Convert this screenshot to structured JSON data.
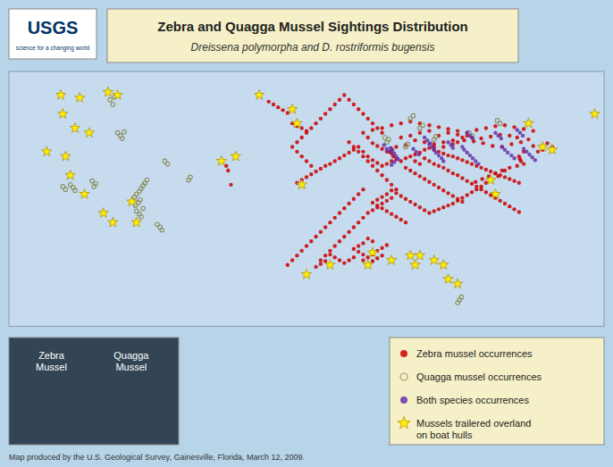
{
  "chart_data": {
    "type": "scatter",
    "title": "Zebra and Quagga Mussel Sightings Distribution",
    "subtitle": "Dreissena polymorpha and D. rostriformis bugensis",
    "annotations": [
      "USGS",
      "science for a changing world",
      "Zebra\nMussel",
      "Quagga\nMussel",
      "Map produced by the U.S. Geological Survey, Gainesville, Florida, March 12, 2009."
    ],
    "xlim": [
      -128,
      -65
    ],
    "ylim": [
      23,
      50
    ],
    "tick_labels": false,
    "legend": "lower right",
    "series": [
      {
        "name": "Zebra mussel occurrences",
        "color": "#cc0000",
        "marker": "circle",
        "x": [
          -73.9,
          -74.0,
          -73.5,
          -72.0,
          -71.5,
          -70.5,
          -71.0,
          -72.5,
          -73.0,
          -74.2,
          -75.0,
          -76.0,
          -77.0,
          -78.0,
          -79.0,
          -79.5,
          -78.5,
          -77.5,
          -76.5,
          -75.5,
          -74.5,
          -73.5,
          -72.5,
          -73.8,
          -74.8,
          -75.8,
          -76.8,
          -77.8,
          -78.8,
          -79.8,
          -80.5,
          -81.0,
          -82.0,
          -83.0,
          -84.0,
          -85.0,
          -86.0,
          -87.0,
          -87.5,
          -87.7,
          -87.5,
          -87.3,
          -87.0,
          -86.5,
          -86.0,
          -85.5,
          -85.0,
          -84.5,
          -84.0,
          -83.5,
          -83.0,
          -82.5,
          -82.0,
          -81.5,
          -81.0,
          -80.5,
          -80.0,
          -79.5,
          -79.0,
          -78.5,
          -78.0,
          -77.5,
          -77.0,
          -76.5,
          -76.0,
          -75.5,
          -75.0,
          -74.5,
          -74.0,
          -75.5,
          -76.2,
          -77.0,
          -77.5,
          -78.0,
          -78.5,
          -79.0,
          -79.5,
          -80.0,
          -80.5,
          -81.0,
          -81.5,
          -82.0,
          -82.5,
          -83.0,
          -83.5,
          -84.0,
          -84.5,
          -85.0,
          -85.5,
          -86.0,
          -86.5,
          -87.0,
          -87.5,
          -88.0,
          -88.5,
          -89.0,
          -89.5,
          -89.0,
          -88.5,
          -88.0,
          -87.5,
          -87.0,
          -86.5,
          -86.0,
          -88.5,
          -89.0,
          -89.5,
          -90.0,
          -90.5,
          -90.0,
          -89.5,
          -89.0,
          -88.5,
          -88.0,
          -89.5,
          -90.0,
          -90.5,
          -91.0,
          -91.5,
          -91.0,
          -90.5,
          -91.5,
          -92.0,
          -92.5,
          -93.0,
          -93.5,
          -94.0,
          -94.5,
          -95.0,
          -95.5,
          -95.0,
          -94.5,
          -94.0,
          -93.5,
          -93.0,
          -92.5,
          -92.0,
          -91.5,
          -91.0,
          -90.5,
          -90.0,
          -89.5,
          -89.0,
          -88.5,
          -88.0,
          -87.5,
          -87.0,
          -87.5,
          -88.0,
          -88.5,
          -89.0,
          -89.5,
          -90.0,
          -90.5,
          -91.0,
          -91.5,
          -92.0,
          -88.0,
          -88.5,
          -89.0,
          -89.5,
          -90.0,
          -90.5,
          -89.5,
          -88.5,
          -87.5,
          -86.5,
          -85.5,
          -84.5,
          -83.5,
          -82.5,
          -81.5,
          -80.5,
          -86.5,
          -85.5,
          -84.5,
          -83.5,
          -82.5,
          -81.5,
          -80.5,
          -79.5,
          -83.0,
          -82.0,
          -81.0,
          -80.0,
          -85.0,
          -84.5,
          -84.0,
          -83.5,
          -83.0,
          -82.5,
          -82.0,
          -81.5,
          -81.0,
          -80.5,
          -80.0,
          -79.5,
          -79.0,
          -78.5,
          -78.0,
          -77.5,
          -77.0,
          -76.5,
          -76.0,
          -75.5,
          -75.0,
          -74.5,
          -74.0,
          -73.8,
          -73.5,
          -74.2,
          -75.0,
          -75.8,
          -76.5,
          -77.2,
          -77.9,
          -78.6,
          -86.0,
          -85.5,
          -85.0,
          -84.5,
          -84.0,
          -83.5,
          -83.0,
          -82.5,
          -82.0,
          -81.5,
          -81.0,
          -80.5,
          -80.0,
          -87.5,
          -88.0,
          -88.5,
          -89.0,
          -89.5,
          -90.0,
          -90.5,
          -91.0,
          -91.5,
          -92.0,
          -92.5,
          -93.0,
          -93.5,
          -94.0,
          -94.5,
          -95.0,
          -95.5,
          -96.0,
          -96.5,
          -97.0,
          -97.5,
          -96.0,
          -96.5,
          -97.0,
          -97.5,
          -98.0,
          -97.5,
          -97.0,
          -96.5,
          -96.0,
          -95.5,
          -95.0,
          -94.5,
          -94.0,
          -93.5,
          -93.0,
          -92.5,
          -92.0,
          -91.5,
          -91.0,
          -90.5,
          -90.0,
          -89.5,
          -89.0,
          -88.5,
          -104.8,
          -105.0,
          -104.5,
          -98.5,
          -98.0,
          -97.5,
          -97.0,
          -96.5,
          -96.0,
          -95.5,
          -95.0,
          -94.5,
          -94.0,
          -93.5,
          -93.0,
          -92.5,
          -92.0,
          -91.5,
          -91.0,
          -90.5,
          -100.5,
          -100.0,
          -99.5,
          -99.0,
          -98.5,
          -98.0,
          -97.5,
          -97.0,
          -96.5
        ],
        "values": [
          40.7,
          41.0,
          41.5,
          41.5,
          41.7,
          42.0,
          42.4,
          42.1,
          42.8,
          43.0,
          43.2,
          43.3,
          43.1,
          42.9,
          43.0,
          43.5,
          43.8,
          44.0,
          44.2,
          44.3,
          44.1,
          43.9,
          43.7,
          42.5,
          42.3,
          42.0,
          42.1,
          42.4,
          42.6,
          42.7,
          42.5,
          42.3,
          42.0,
          42.3,
          42.5,
          42.7,
          42.2,
          42.0,
          41.8,
          41.5,
          41.3,
          41.0,
          40.7,
          40.5,
          40.8,
          41.0,
          41.2,
          41.4,
          41.7,
          41.9,
          41.7,
          41.5,
          41.3,
          41.1,
          41.0,
          40.8,
          40.6,
          40.4,
          40.2,
          40.0,
          39.8,
          39.6,
          39.4,
          39.2,
          39.0,
          38.8,
          38.6,
          38.4,
          38.2,
          39.5,
          38.9,
          38.5,
          38.2,
          37.8,
          37.5,
          37.2,
          36.9,
          36.6,
          36.3,
          36.0,
          35.8,
          35.6,
          35.4,
          35.2,
          35.0,
          35.3,
          35.6,
          35.9,
          36.2,
          36.5,
          36.8,
          37.1,
          37.4,
          37.0,
          36.7,
          36.4,
          36.1,
          35.8,
          35.5,
          35.2,
          34.9,
          34.6,
          34.3,
          34.0,
          30.5,
          30.2,
          29.9,
          29.6,
          30.0,
          30.3,
          30.6,
          31.0,
          31.3,
          31.6,
          32.0,
          32.3,
          31.8,
          31.5,
          31.2,
          30.9,
          30.6,
          30.3,
          30.0,
          29.7,
          30.0,
          30.3,
          30.6,
          29.9,
          29.6,
          29.3,
          30.0,
          30.5,
          31.0,
          31.5,
          32.0,
          32.5,
          33.0,
          33.5,
          34.0,
          34.5,
          35.0,
          35.3,
          35.6,
          36.0,
          36.3,
          36.6,
          37.5,
          38.0,
          38.5,
          39.0,
          39.5,
          40.0,
          40.5,
          41.0,
          41.5,
          42.0,
          42.5,
          41.5,
          41.8,
          42.1,
          42.4,
          43.0,
          43.5,
          43.8,
          44.0,
          44.3,
          44.5,
          44.7,
          44.5,
          44.3,
          44.1,
          43.9,
          43.7,
          43.0,
          43.2,
          43.5,
          43.7,
          43.2,
          43.5,
          43.3,
          43.2,
          42.0,
          42.5,
          42.7,
          43.0,
          40.5,
          40.2,
          40.8,
          40.5,
          40.2,
          40.0,
          39.8,
          39.5,
          39.2,
          39.0,
          38.7,
          38.4,
          38.1,
          37.8,
          37.5,
          37.2,
          36.9,
          36.6,
          36.3,
          36.0,
          35.7,
          35.4,
          35.1,
          40.5,
          40.2,
          40.0,
          39.8,
          39.5,
          39.2,
          38.9,
          38.6,
          38.3,
          39.8,
          39.5,
          39.2,
          38.9,
          38.6,
          38.3,
          38.0,
          37.7,
          37.4,
          37.1,
          36.8,
          36.5,
          36.2,
          40.5,
          40.2,
          40.0,
          40.3,
          40.6,
          41.0,
          41.5,
          42.0,
          41.7,
          41.4,
          41.1,
          40.8,
          40.5,
          40.2,
          40.0,
          39.7,
          39.4,
          39.1,
          38.8,
          38.5,
          38.2,
          40.0,
          40.5,
          41.0,
          41.5,
          42.0,
          42.5,
          43.0,
          43.5,
          44.0,
          44.5,
          45.0,
          45.5,
          46.0,
          46.5,
          47.0,
          47.5,
          47.0,
          46.5,
          46.0,
          45.5,
          45.0,
          44.5,
          44.0,
          43.5,
          39.5,
          40.0,
          38.0,
          29.5,
          30.0,
          30.5,
          31.0,
          31.5,
          32.0,
          32.5,
          33.0,
          33.5,
          34.0,
          34.5,
          35.0,
          35.5,
          36.0,
          36.5,
          37.0,
          37.5,
          46.8,
          46.5,
          46.2,
          45.9,
          45.6,
          44.5,
          44.2,
          44.0,
          43.7
        ]
      },
      {
        "name": "Quagga mussel occurrences",
        "color": "#888855",
        "marker": "circle-open",
        "x": [
          -114.5,
          -114.2,
          -114.0,
          -113.8,
          -114.6,
          -114.3,
          -114.1,
          -114.7,
          -114.5,
          -114.2,
          -114.0,
          -113.8,
          -113.6,
          -113.4,
          -116.5,
          -116.2,
          -116.0,
          -115.8,
          -117.0,
          -117.3,
          -116.8,
          -119.0,
          -118.8,
          -119.2,
          -121.5,
          -121.2,
          -121.0,
          -122.0,
          -122.3,
          -111.5,
          -111.2,
          -109.0,
          -108.8,
          -112.0,
          -112.3,
          -111.8,
          -80.5,
          -80.3,
          -80.1,
          -88.0,
          -87.8,
          -88.2,
          -76.0,
          -76.3,
          -79.0,
          -79.3,
          -83.0,
          -82.8,
          -86.0,
          -85.8,
          -84.5,
          -84.2,
          -85.5,
          -85.2
        ],
        "values": [
          35.2,
          34.9,
          34.6,
          35.5,
          35.8,
          36.1,
          36.4,
          36.7,
          37.0,
          37.3,
          37.6,
          37.9,
          38.2,
          38.5,
          43.5,
          43.2,
          42.9,
          43.6,
          46.5,
          47.0,
          47.3,
          37.8,
          38.1,
          38.4,
          38.0,
          37.7,
          37.4,
          37.5,
          37.8,
          40.5,
          40.2,
          38.5,
          38.8,
          33.5,
          33.8,
          33.2,
          25.5,
          25.8,
          26.1,
          42.5,
          42.8,
          43.0,
          44.5,
          44.8,
          43.2,
          43.5,
          42.8,
          43.1,
          42.0,
          42.3,
          44.0,
          44.3,
          45.0,
          45.3
        ]
      },
      {
        "name": "Both species occurrences",
        "color": "#6633aa",
        "marker": "circle",
        "x": [
          -87.6,
          -87.4,
          -87.2,
          -87.0,
          -86.8,
          -87.2,
          -87.5,
          -83.5,
          -83.2,
          -83.0,
          -82.8,
          -82.5,
          -82.2,
          -82.0,
          -80.0,
          -79.8,
          -79.5,
          -79.2,
          -78.9,
          -78.6,
          -78.3,
          -75.8,
          -75.5,
          -75.2,
          -74.8,
          -74.5,
          -73.5,
          -73.2,
          -72.9,
          -72.6,
          -72.3,
          -88.3,
          -88.0,
          -87.8,
          -84.0,
          -83.7,
          -83.4,
          -81.5,
          -81.2,
          -81.0,
          -76.5,
          -76.2,
          -75.9,
          -74.2,
          -73.9,
          -73.6,
          -85.2,
          -84.9,
          -84.6,
          -79.5,
          -79.2,
          -78.9
        ],
        "values": [
          41.9,
          41.6,
          41.3,
          41.0,
          40.7,
          40.4,
          40.1,
          42.3,
          42.0,
          41.7,
          41.4,
          41.1,
          40.8,
          40.5,
          42.0,
          41.7,
          41.4,
          41.1,
          40.8,
          40.5,
          40.2,
          42.0,
          41.7,
          41.4,
          41.1,
          40.8,
          41.8,
          41.5,
          41.2,
          40.9,
          40.6,
          42.2,
          41.8,
          41.5,
          43.0,
          42.7,
          42.4,
          42.5,
          42.2,
          41.9,
          43.5,
          43.2,
          42.9,
          43.8,
          43.5,
          43.2,
          41.8,
          41.5,
          41.2,
          43.5,
          43.2,
          42.9
        ]
      },
      {
        "name": "Mussels trailered overland\non boat hulls",
        "color": "#ffee00",
        "marker": "star",
        "x": [
          -122.5,
          -120.5,
          -117.5,
          -116.5,
          -122.3,
          -121.0,
          -119.5,
          -115.0,
          -114.5,
          -117.0,
          -118.0,
          -120.0,
          -121.5,
          -122.0,
          -124.0,
          -105.5,
          -104.0,
          -101.5,
          -98.0,
          -97.0,
          -97.5,
          -96.5,
          -94.0,
          -90.0,
          -89.5,
          -87.5,
          -85.5,
          -81.5,
          -80.5,
          -82.0,
          -83.0,
          -84.5,
          -85.0,
          -77.0,
          -76.5,
          -71.5,
          -70.5,
          -66.0,
          -73.0
        ],
        "values": [
          47.5,
          47.2,
          47.8,
          47.5,
          45.5,
          44.0,
          43.5,
          36.2,
          34.0,
          34.0,
          35.0,
          37.0,
          39.0,
          41.0,
          41.5,
          40.5,
          41.0,
          47.5,
          46.0,
          38.0,
          44.5,
          28.5,
          29.5,
          29.5,
          30.8,
          30.0,
          30.5,
          28.0,
          27.5,
          29.5,
          30.0,
          30.5,
          29.5,
          38.5,
          37.0,
          42.0,
          41.7,
          45.5,
          44.5
        ]
      }
    ]
  }
}
